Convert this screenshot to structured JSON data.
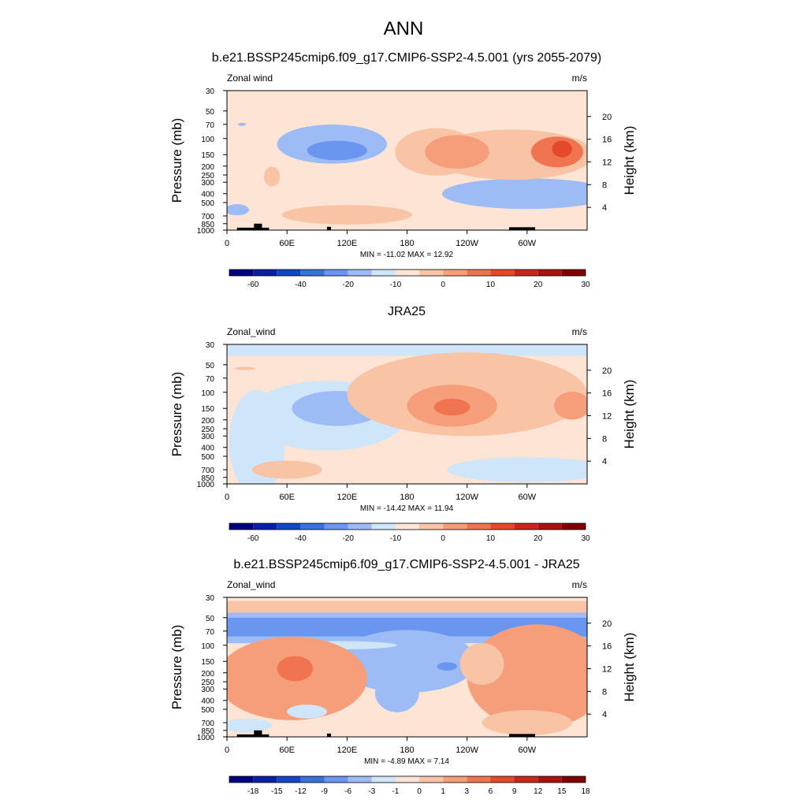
{
  "figure": {
    "title": "ANN",
    "colors": {
      "ocean_blue": "#cfe6fa",
      "land": "#000000",
      "frame": "#000000"
    }
  },
  "chart_data": [
    {
      "type": "heatmap",
      "title": "b.e21.BSSP245cmip6.f09_g17.CMIP6-SSP2-4.5.001 (yrs 2055-2079)",
      "left_label": "Zonal wind",
      "right_label": "m/s",
      "ylabel": "Pressure (mb)",
      "ylabel_right": "Height (km)",
      "x_ticks": [
        "0",
        "60E",
        "120E",
        "180",
        "120W",
        "60W"
      ],
      "x_range_deg": [
        0,
        360
      ],
      "y_ticks": [
        "30",
        "50",
        "70",
        "100",
        "150",
        "200",
        "250",
        "300",
        "400",
        "500",
        "700",
        "850",
        "1000"
      ],
      "y_range_mb": [
        30,
        1000
      ],
      "y_scale": "log",
      "height_ticks": [
        "4",
        "8",
        "12",
        "16",
        "20"
      ],
      "stats": "MIN = -11.02  MAX =  12.92",
      "colorbar": {
        "colors": [
          "#000080",
          "#0a1fa8",
          "#1444c8",
          "#3a6fe0",
          "#6a96ef",
          "#9dbcf6",
          "#cfe6fa",
          "#fde4d4",
          "#f9c3a6",
          "#f59e79",
          "#ef744f",
          "#e4492b",
          "#c9251a",
          "#a8130f",
          "#800000"
        ],
        "labels": [
          "-60",
          "-40",
          "-20",
          "-10",
          "0",
          "10",
          "20",
          "30"
        ]
      },
      "fill": "#fde4d4",
      "blobs": [
        {
          "lon": 105,
          "mb": 115,
          "rx": 55,
          "ry": 0.28,
          "level": 5
        },
        {
          "lon": 110,
          "mb": 135,
          "rx": 30,
          "ry": 0.14,
          "level": 4
        },
        {
          "lon": 300,
          "mb": 400,
          "rx": 85,
          "ry": 0.22,
          "level": 5
        },
        {
          "lon": 10,
          "mb": 600,
          "rx": 12,
          "ry": 0.08,
          "level": 5
        },
        {
          "lon": 15,
          "mb": 70,
          "rx": 4,
          "ry": 0.02,
          "level": 5
        },
        {
          "lon": 210,
          "mb": 140,
          "rx": 42,
          "ry": 0.34,
          "level": 8
        },
        {
          "lon": 285,
          "mb": 150,
          "rx": 82,
          "ry": 0.36,
          "level": 8
        },
        {
          "lon": 230,
          "mb": 140,
          "rx": 32,
          "ry": 0.24,
          "level": 9
        },
        {
          "lon": 330,
          "mb": 140,
          "rx": 26,
          "ry": 0.22,
          "level": 10
        },
        {
          "lon": 335,
          "mb": 130,
          "rx": 10,
          "ry": 0.12,
          "level": 11
        },
        {
          "lon": 120,
          "mb": 680,
          "rx": 65,
          "ry": 0.14,
          "level": 8
        },
        {
          "lon": 45,
          "mb": 260,
          "rx": 8,
          "ry": 0.14,
          "level": 8
        }
      ],
      "land": [
        {
          "lon0": 10,
          "lon1": 42,
          "mb": 940
        },
        {
          "lon0": 27,
          "lon1": 35,
          "mb": 850
        },
        {
          "lon0": 100,
          "lon1": 104,
          "mb": 920
        },
        {
          "lon0": 282,
          "lon1": 308,
          "mb": 930
        }
      ]
    },
    {
      "type": "heatmap",
      "title": "JRA25",
      "left_label": "Zonal_wind",
      "right_label": "m/s",
      "ylabel": "Pressure (mb)",
      "ylabel_right": "Height (km)",
      "x_ticks": [
        "0",
        "60E",
        "120E",
        "180",
        "120W",
        "60W"
      ],
      "x_range_deg": [
        0,
        360
      ],
      "y_ticks": [
        "30",
        "50",
        "70",
        "100",
        "150",
        "200",
        "250",
        "300",
        "400",
        "500",
        "700",
        "850",
        "1000"
      ],
      "y_range_mb": [
        30,
        1000
      ],
      "y_scale": "log",
      "height_ticks": [
        "4",
        "8",
        "12",
        "16",
        "20"
      ],
      "stats": "MIN = -14.42  MAX =  11.94",
      "colorbar": {
        "colors": [
          "#000080",
          "#0a1fa8",
          "#1444c8",
          "#3a6fe0",
          "#6a96ef",
          "#9dbcf6",
          "#cfe6fa",
          "#fde4d4",
          "#f9c3a6",
          "#f59e79",
          "#ef744f",
          "#e4492b",
          "#c9251a",
          "#a8130f",
          "#800000"
        ],
        "labels": [
          "-60",
          "-40",
          "-20",
          "-10",
          "0",
          "10",
          "20",
          "30"
        ]
      },
      "fill": "#fde4d4",
      "blobs": [
        {
          "lon": 100,
          "mb": 180,
          "rx": 80,
          "ry": 0.5,
          "level": 6
        },
        {
          "lon": 30,
          "mb": 350,
          "rx": 28,
          "ry": 0.75,
          "level": 6
        },
        {
          "lon": 110,
          "mb": 150,
          "rx": 45,
          "ry": 0.25,
          "level": 5
        },
        {
          "lon": 300,
          "mb": 700,
          "rx": 80,
          "ry": 0.18,
          "level": 6
        },
        {
          "lon": 240,
          "mb": 105,
          "rx": 120,
          "ry": 0.6,
          "level": 8
        },
        {
          "lon": 225,
          "mb": 140,
          "rx": 45,
          "ry": 0.3,
          "level": 9
        },
        {
          "lon": 345,
          "mb": 140,
          "rx": 18,
          "ry": 0.2,
          "level": 9
        },
        {
          "lon": 225,
          "mb": 145,
          "rx": 18,
          "ry": 0.12,
          "level": 10
        },
        {
          "lon": 60,
          "mb": 700,
          "rx": 35,
          "ry": 0.13,
          "level": 8
        },
        {
          "lon": 18,
          "mb": 55,
          "rx": 10,
          "ry": 0.025,
          "level": 8
        }
      ],
      "bands": [
        {
          "mb0": 30,
          "mb1": 40,
          "level": 6
        }
      ]
    },
    {
      "type": "heatmap",
      "title": "b.e21.BSSP245cmip6.f09_g17.CMIP6-SSP2-4.5.001 - JRA25",
      "left_label": "Zonal_wind",
      "right_label": "m/s",
      "ylabel": "Pressure (mb)",
      "ylabel_right": "Height (km)",
      "x_ticks": [
        "0",
        "60E",
        "120E",
        "180",
        "120W",
        "60W"
      ],
      "x_range_deg": [
        0,
        360
      ],
      "y_ticks": [
        "30",
        "50",
        "70",
        "100",
        "150",
        "200",
        "250",
        "300",
        "400",
        "500",
        "700",
        "850",
        "1000"
      ],
      "y_range_mb": [
        30,
        1000
      ],
      "y_scale": "log",
      "height_ticks": [
        "4",
        "8",
        "12",
        "16",
        "20"
      ],
      "stats": "MIN =  -4.89  MAX =   7.14",
      "colorbar": {
        "colors": [
          "#000080",
          "#0a1fa8",
          "#1444c8",
          "#3a6fe0",
          "#6a96ef",
          "#9dbcf6",
          "#cfe6fa",
          "#fde4d4",
          "#f9c3a6",
          "#f59e79",
          "#ef744f",
          "#e4492b",
          "#c9251a",
          "#a8130f",
          "#800000"
        ],
        "labels": [
          "-18",
          "-15",
          "-12",
          "-9",
          "-6",
          "-3",
          "-1",
          "0",
          "1",
          "3",
          "6",
          "9",
          "12",
          "15",
          "18"
        ]
      },
      "fill": "#fde4d4",
      "bands": [
        {
          "mb0": 30,
          "mb1": 38,
          "level": 7
        },
        {
          "mb0": 33,
          "mb1": 45,
          "level": 8
        },
        {
          "mb0": 44,
          "mb1": 95,
          "level": 5
        },
        {
          "mb0": 50,
          "mb1": 80,
          "level": 4
        }
      ],
      "blobs": [
        {
          "lon": 180,
          "mb": 150,
          "rx": 70,
          "ry": 0.45,
          "level": 5
        },
        {
          "lon": 170,
          "mb": 330,
          "rx": 22,
          "ry": 0.28,
          "level": 5
        },
        {
          "lon": 220,
          "mb": 170,
          "rx": 10,
          "ry": 0.06,
          "level": 4
        },
        {
          "lon": 110,
          "mb": 100,
          "rx": 60,
          "ry": 0.06,
          "level": 6
        },
        {
          "lon": 65,
          "mb": 230,
          "rx": 75,
          "ry": 0.6,
          "level": 9
        },
        {
          "lon": 68,
          "mb": 180,
          "rx": 18,
          "ry": 0.18,
          "level": 10
        },
        {
          "lon": 310,
          "mb": 220,
          "rx": 70,
          "ry": 0.75,
          "level": 9
        },
        {
          "lon": 255,
          "mb": 160,
          "rx": 22,
          "ry": 0.3,
          "level": 8
        },
        {
          "lon": 20,
          "mb": 750,
          "rx": 25,
          "ry": 0.1,
          "level": 6
        },
        {
          "lon": 80,
          "mb": 530,
          "rx": 20,
          "ry": 0.1,
          "level": 6
        },
        {
          "lon": 300,
          "mb": 700,
          "rx": 45,
          "ry": 0.18,
          "level": 8
        }
      ],
      "land": [
        {
          "lon0": 10,
          "lon1": 42,
          "mb": 940
        },
        {
          "lon0": 27,
          "lon1": 35,
          "mb": 850
        },
        {
          "lon0": 100,
          "lon1": 104,
          "mb": 920
        },
        {
          "lon0": 282,
          "lon1": 308,
          "mb": 930
        }
      ]
    }
  ]
}
